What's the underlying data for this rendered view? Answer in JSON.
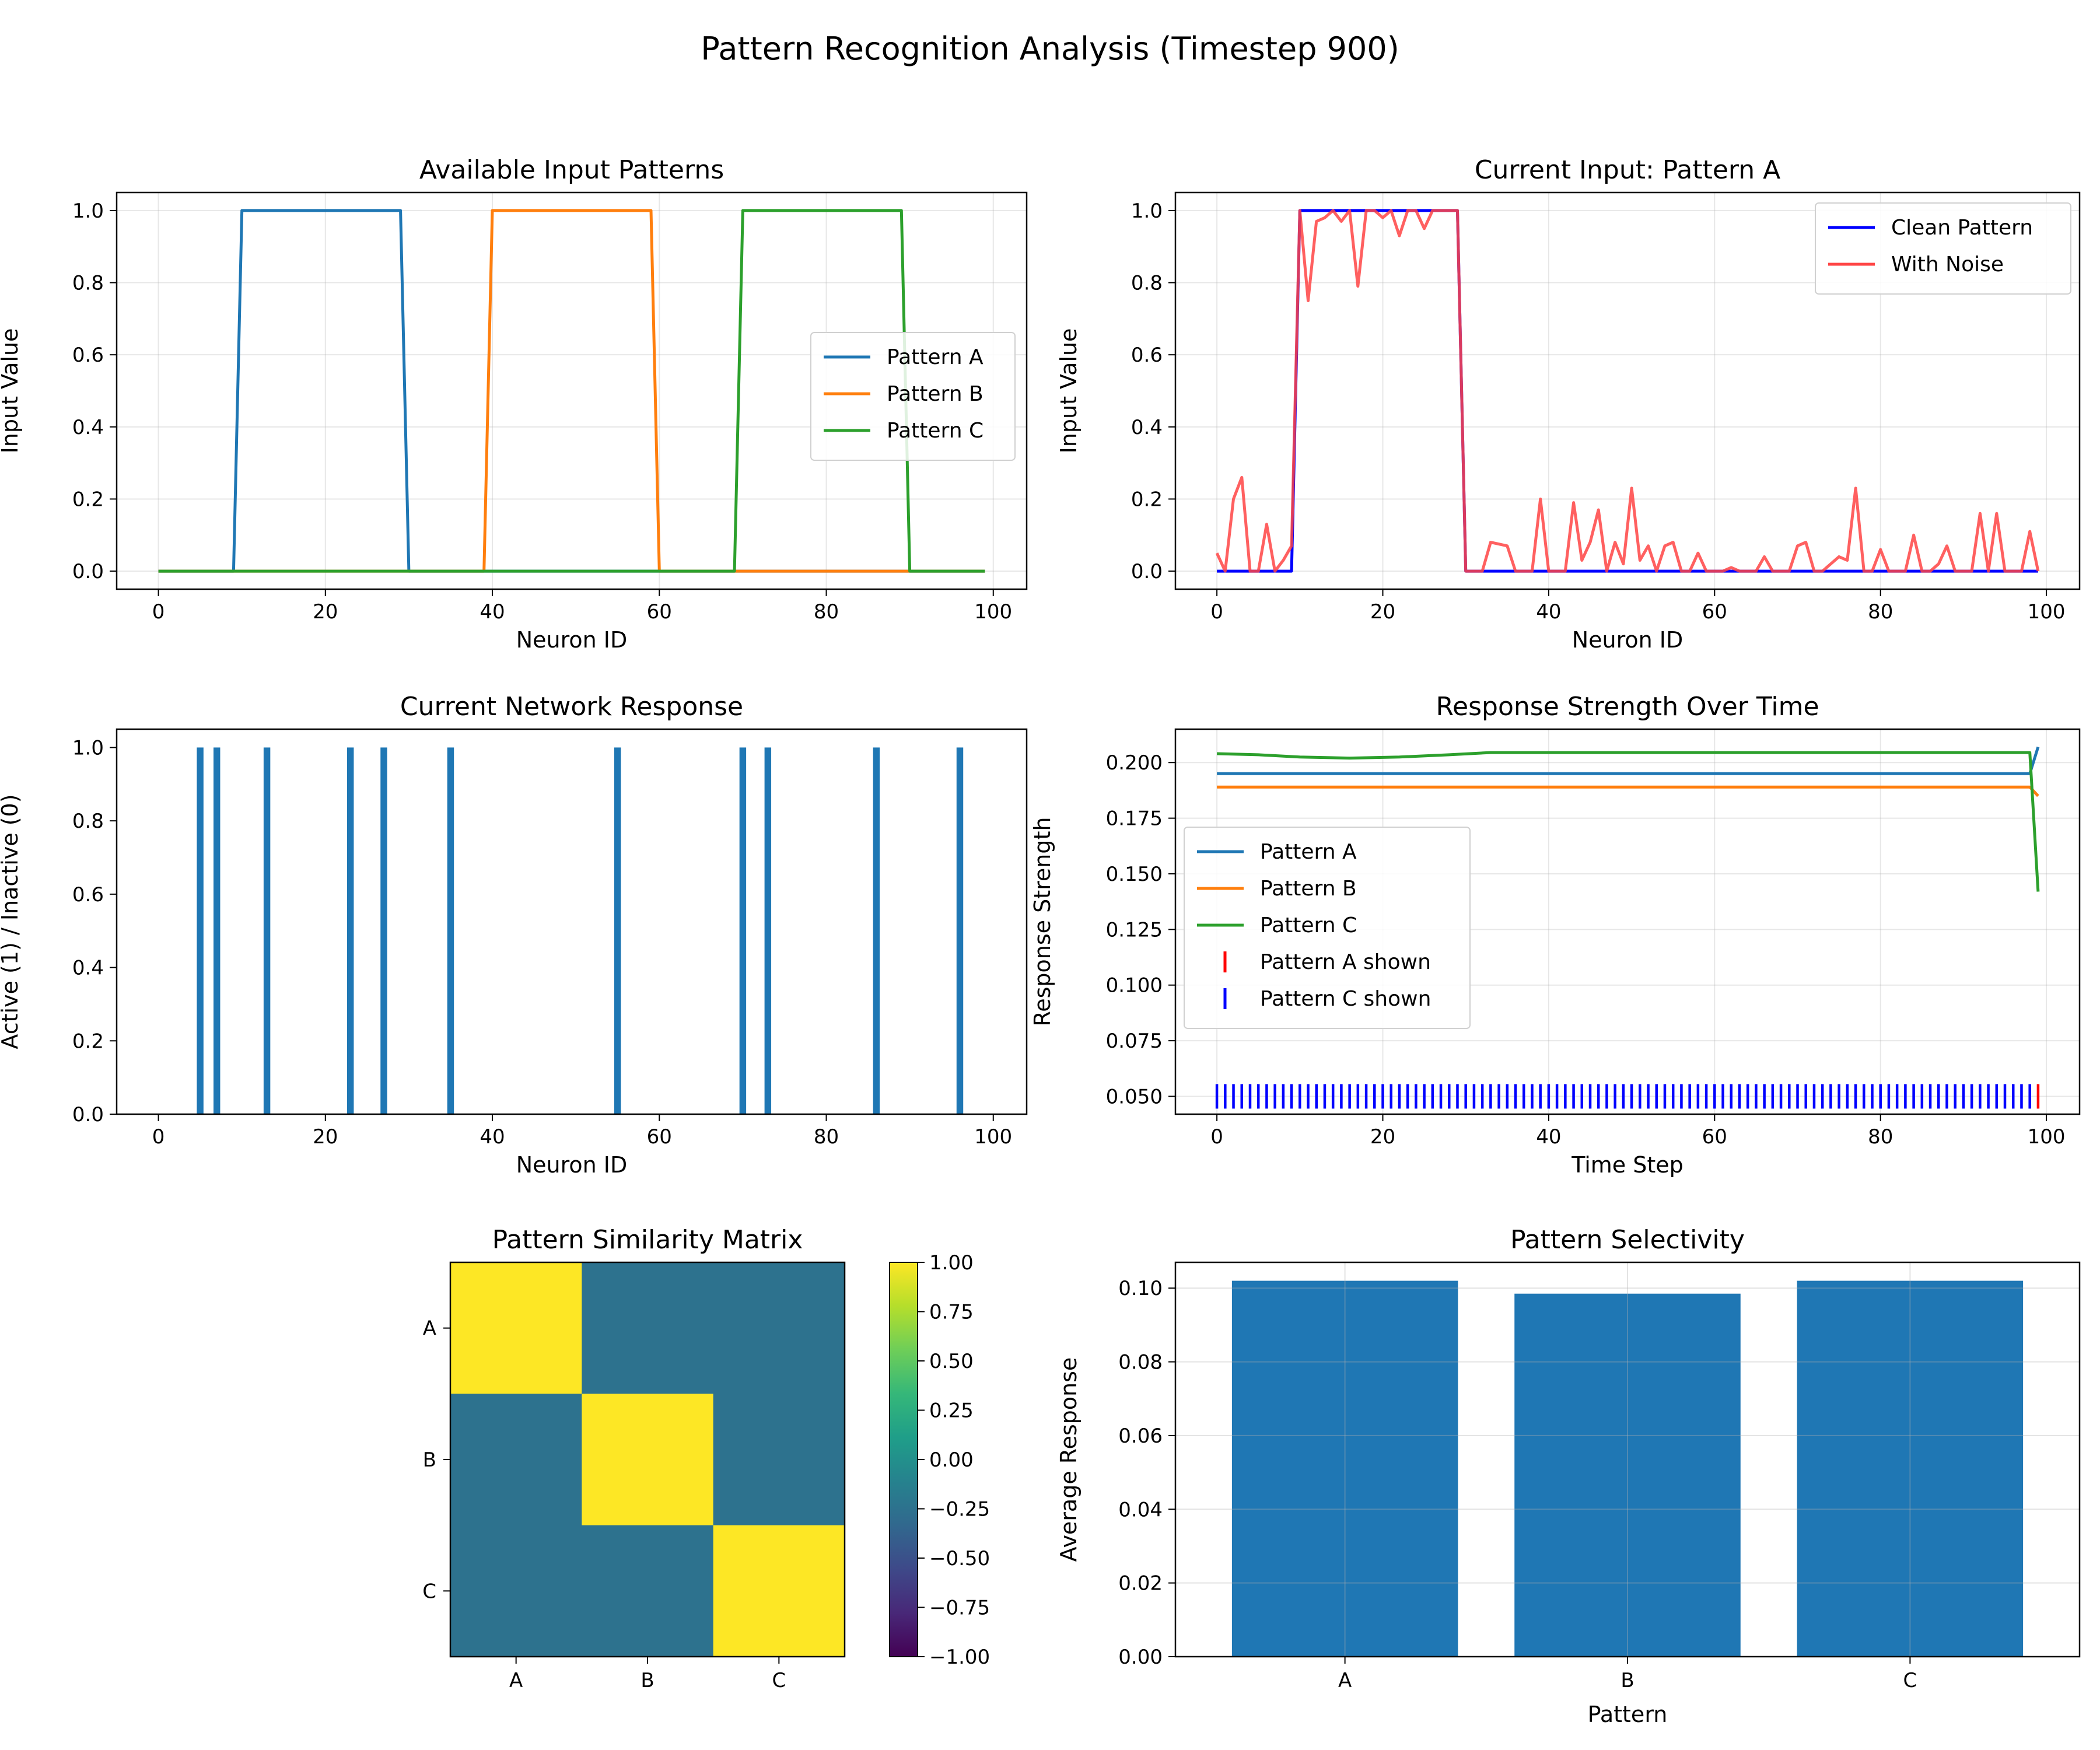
{
  "figure": {
    "title": "Pattern Recognition Analysis (Timestep 900)"
  },
  "chart_data": [
    {
      "id": "input-patterns",
      "type": "line",
      "title": "Available Input Patterns",
      "xlabel": "Neuron ID",
      "ylabel": "Input Value",
      "xlim": [
        -5,
        104
      ],
      "ylim": [
        -0.05,
        1.05
      ],
      "xticks": [
        0,
        20,
        40,
        60,
        80,
        100
      ],
      "yticks": [
        0.0,
        0.2,
        0.4,
        0.6,
        0.8,
        1.0
      ],
      "grid": true,
      "legend": "center-right",
      "series": [
        {
          "name": "Pattern A",
          "color": "#1f77b4",
          "x": [
            0,
            9,
            10,
            29,
            30,
            99
          ],
          "y": [
            0,
            0,
            1,
            1,
            0,
            0
          ]
        },
        {
          "name": "Pattern B",
          "color": "#ff7f0e",
          "x": [
            0,
            39,
            40,
            59,
            60,
            99
          ],
          "y": [
            0,
            0,
            1,
            1,
            0,
            0
          ]
        },
        {
          "name": "Pattern C",
          "color": "#2ca02c",
          "x": [
            0,
            69,
            70,
            89,
            90,
            99
          ],
          "y": [
            0,
            0,
            1,
            1,
            0,
            0
          ]
        }
      ]
    },
    {
      "id": "current-input",
      "type": "line",
      "title": "Current Input: Pattern A",
      "xlabel": "Neuron ID",
      "ylabel": "Input Value",
      "xlim": [
        -5,
        104
      ],
      "ylim": [
        -0.05,
        1.05
      ],
      "xticks": [
        0,
        20,
        40,
        60,
        80,
        100
      ],
      "yticks": [
        0.0,
        0.2,
        0.4,
        0.6,
        0.8,
        1.0
      ],
      "grid": true,
      "legend": "top-right",
      "series": [
        {
          "name": "Clean Pattern",
          "color": "#0000ff",
          "x": [
            0,
            9,
            10,
            29,
            30,
            99
          ],
          "y": [
            0,
            0,
            1,
            1,
            0,
            0
          ]
        },
        {
          "name": "With Noise",
          "color": "#ff4444",
          "x": [
            0,
            1,
            2,
            3,
            4,
            5,
            6,
            7,
            8,
            9,
            10,
            11,
            12,
            13,
            14,
            15,
            16,
            17,
            18,
            19,
            20,
            21,
            22,
            23,
            24,
            25,
            26,
            27,
            28,
            29,
            30,
            31,
            32,
            33,
            34,
            35,
            36,
            37,
            38,
            39,
            40,
            41,
            42,
            43,
            44,
            45,
            46,
            47,
            48,
            49,
            50,
            51,
            52,
            53,
            54,
            55,
            56,
            57,
            58,
            59,
            60,
            61,
            62,
            63,
            64,
            65,
            66,
            67,
            68,
            69,
            70,
            71,
            72,
            73,
            74,
            75,
            76,
            77,
            78,
            79,
            80,
            81,
            82,
            83,
            84,
            85,
            86,
            87,
            88,
            89,
            90,
            91,
            92,
            93,
            94,
            95,
            96,
            97,
            98,
            99
          ],
          "y": [
            0.05,
            0.0,
            0.2,
            0.26,
            0.0,
            0.0,
            0.13,
            0.0,
            0.03,
            0.07,
            1.0,
            0.75,
            0.97,
            0.98,
            1.0,
            0.97,
            1.0,
            0.79,
            1.0,
            1.0,
            0.98,
            1.0,
            0.93,
            1.0,
            1.0,
            0.95,
            1.0,
            1.0,
            1.0,
            1.0,
            0.0,
            0.0,
            0.0,
            0.08,
            0.075,
            0.07,
            0.0,
            0.0,
            0.0,
            0.2,
            0.0,
            0.0,
            0.0,
            0.19,
            0.03,
            0.08,
            0.17,
            0.0,
            0.08,
            0.02,
            0.23,
            0.03,
            0.07,
            0.0,
            0.07,
            0.08,
            0.0,
            0.0,
            0.05,
            0.0,
            0.0,
            0.0,
            0.01,
            0.0,
            0.0,
            0.0,
            0.04,
            0.0,
            0.0,
            0.0,
            0.07,
            0.08,
            0.0,
            0.0,
            0.02,
            0.04,
            0.03,
            0.23,
            0.0,
            0.0,
            0.06,
            0.0,
            0.0,
            0.0,
            0.1,
            0.0,
            0.0,
            0.02,
            0.07,
            0.0,
            0.0,
            0.0,
            0.16,
            0.0,
            0.16,
            0.0,
            0.0,
            0.0,
            0.11,
            0.0
          ]
        }
      ]
    },
    {
      "id": "network-response",
      "type": "bar",
      "title": "Current Network Response",
      "xlabel": "Neuron ID",
      "ylabel": "Active (1) / Inactive (0)",
      "xlim": [
        -5,
        104
      ],
      "ylim": [
        0,
        1.05
      ],
      "xticks": [
        0,
        20,
        40,
        60,
        80,
        100
      ],
      "yticks": [
        0.0,
        0.2,
        0.4,
        0.6,
        0.8,
        1.0
      ],
      "grid": false,
      "color": "#1f77b4",
      "active_neurons": [
        5,
        7,
        13,
        23,
        27,
        35,
        55,
        70,
        73,
        86,
        96
      ],
      "values": [
        1,
        1,
        1,
        1,
        1,
        1,
        1,
        1,
        1,
        1,
        1
      ]
    },
    {
      "id": "response-strength",
      "type": "line",
      "title": "Response Strength Over Time",
      "xlabel": "Time Step",
      "ylabel": "Response Strength",
      "xlim": [
        -5,
        104
      ],
      "ylim": [
        0.042,
        0.215
      ],
      "xticks": [
        0,
        20,
        40,
        60,
        80,
        100
      ],
      "yticks": [
        0.05,
        0.075,
        0.1,
        0.125,
        0.15,
        0.175,
        0.2
      ],
      "grid": true,
      "legend": "center-left",
      "series": [
        {
          "name": "Pattern A",
          "color": "#1f77b4",
          "x": [
            0,
            98,
            99
          ],
          "y": [
            0.195,
            0.195,
            0.207
          ]
        },
        {
          "name": "Pattern B",
          "color": "#ff7f0e",
          "x": [
            0,
            98,
            99
          ],
          "y": [
            0.189,
            0.189,
            0.185
          ]
        },
        {
          "name": "Pattern C",
          "color": "#2ca02c",
          "x": [
            0,
            5,
            10,
            16,
            22,
            28,
            33,
            60,
            98,
            99
          ],
          "y": [
            0.204,
            0.2035,
            0.2025,
            0.202,
            0.2025,
            0.2035,
            0.2045,
            0.2045,
            0.2045,
            0.142
          ]
        }
      ],
      "markers": [
        {
          "name": "Pattern A shown",
          "color": "#ff0000",
          "x": [
            99
          ],
          "y": 0.05
        },
        {
          "name": "Pattern C shown",
          "color": "#0000ff",
          "x_range": [
            0,
            98
          ],
          "y": 0.05
        }
      ]
    },
    {
      "id": "similarity-matrix",
      "type": "heatmap",
      "title": "Pattern Similarity Matrix",
      "labels": [
        "A",
        "B",
        "C"
      ],
      "values": [
        [
          1.0,
          -0.25,
          -0.25
        ],
        [
          -0.25,
          1.0,
          -0.25
        ],
        [
          -0.25,
          -0.25,
          1.0
        ]
      ],
      "colormap": "viridis",
      "vmin": -1.0,
      "vmax": 1.0,
      "colorbar_ticks": [
        "1.00",
        "0.75",
        "0.50",
        "0.25",
        "0.00",
        "−0.25",
        "−0.50",
        "−0.75",
        "−1.00"
      ],
      "colorbar_values": [
        1.0,
        0.75,
        0.5,
        0.25,
        0.0,
        -0.25,
        -0.5,
        -0.75,
        -1.0
      ]
    },
    {
      "id": "selectivity",
      "type": "bar",
      "title": "Pattern Selectivity",
      "xlabel": "Pattern",
      "ylabel": "Average Response",
      "categories": [
        "A",
        "B",
        "C"
      ],
      "values": [
        0.102,
        0.0985,
        0.102
      ],
      "ylim": [
        0,
        0.107
      ],
      "yticks": [
        0.0,
        0.02,
        0.04,
        0.06,
        0.08,
        0.1
      ],
      "grid": true,
      "color": "#1f77b4"
    }
  ]
}
